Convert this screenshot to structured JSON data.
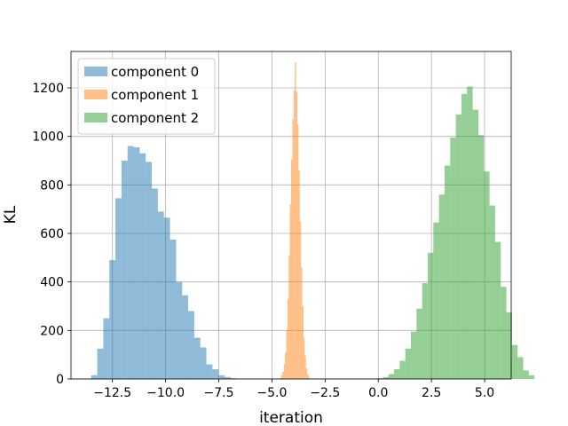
{
  "chart_data": {
    "type": "bar",
    "subtype": "overlapping-histogram",
    "title": "",
    "xlabel": "iteration",
    "ylabel": "KL",
    "xlim": [
      -14.45,
      6.25
    ],
    "ylim": [
      0,
      1350
    ],
    "xticks": [
      -12.5,
      -10.0,
      -7.5,
      -5.0,
      -2.5,
      0.0,
      2.5,
      5.0
    ],
    "xtick_labels": [
      "−12.5",
      "−10.0",
      "−7.5",
      "−5.0",
      "−2.5",
      "0.0",
      "2.5",
      "5.0"
    ],
    "yticks": [
      0,
      200,
      400,
      600,
      800,
      1000,
      1200
    ],
    "ytick_labels": [
      "0",
      "200",
      "400",
      "600",
      "800",
      "1000",
      "1200"
    ],
    "grid": true,
    "alpha": 0.5,
    "legend_position": "top-left",
    "series": [
      {
        "name": "component 0",
        "color": "#1f77b4",
        "bin_start": -13.5,
        "bin_width": 0.285,
        "counts": [
          15,
          125,
          250,
          490,
          745,
          900,
          960,
          955,
          930,
          895,
          785,
          690,
          665,
          575,
          400,
          345,
          280,
          170,
          130,
          60,
          40,
          15,
          8,
          3
        ]
      },
      {
        "name": "component 1",
        "color": "#ff7f0e",
        "bin_start": -4.62,
        "bin_width": 0.058,
        "counts": [
          5,
          15,
          30,
          60,
          110,
          200,
          330,
          510,
          720,
          905,
          1070,
          1190,
          1305,
          1185,
          1050,
          860,
          650,
          460,
          300,
          170,
          95,
          45,
          20,
          8
        ]
      },
      {
        "name": "component 2",
        "color": "#2ca02c",
        "bin_start": -0.05,
        "bin_width": 0.264,
        "counts": [
          3,
          8,
          20,
          40,
          75,
          125,
          195,
          290,
          395,
          520,
          645,
          760,
          880,
          995,
          1090,
          1175,
          1205,
          1110,
          1005,
          855,
          715,
          565,
          380,
          275,
          140,
          90,
          35,
          15
        ]
      }
    ]
  }
}
